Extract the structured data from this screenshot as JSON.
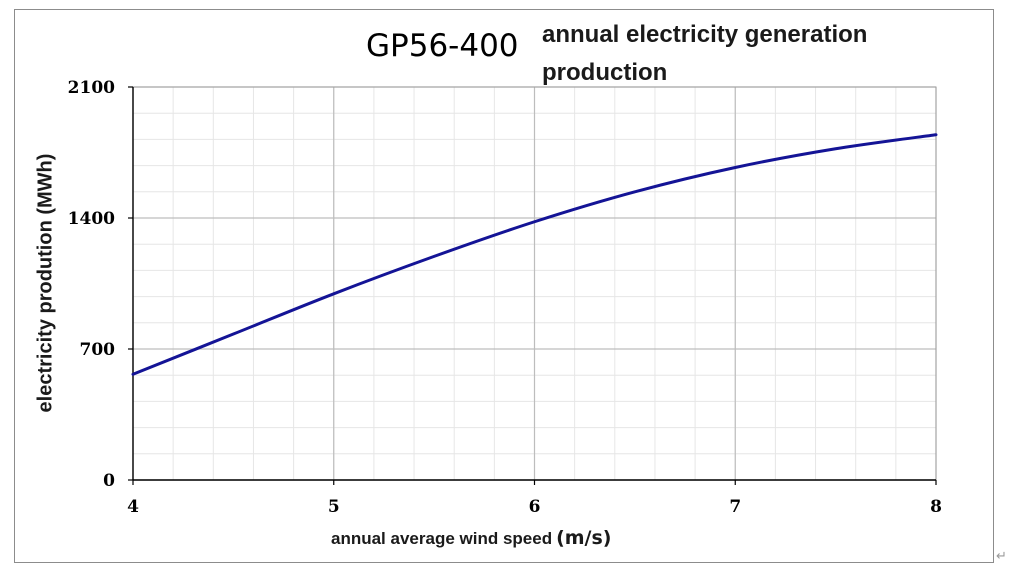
{
  "chart_data": {
    "type": "line",
    "title": "GP56-400",
    "subtitle": "annual electricity generation production",
    "xlabel": "annual average wind speed",
    "xlabel_unit": "(m/s)",
    "ylabel": "electricity prodution (MWh)",
    "xlim": [
      4,
      8
    ],
    "ylim": [
      0,
      2100
    ],
    "x_ticks": [
      4,
      5,
      6,
      7,
      8
    ],
    "y_ticks": [
      0,
      700,
      1400,
      2100
    ],
    "grid": true,
    "minor_grid": true,
    "series": [
      {
        "color": "#141496",
        "x": [
          4.0,
          4.5,
          5.0,
          5.5,
          6.0,
          6.5,
          7.0,
          7.5,
          8.0
        ],
        "y": [
          565,
          780,
          995,
          1195,
          1380,
          1540,
          1670,
          1770,
          1845
        ]
      }
    ]
  },
  "colors": {
    "line": "#141496",
    "major_grid": "#bdbdbd",
    "minor_grid": "#e6e6e6",
    "axis": "#000000",
    "frame": "#8c8c8c"
  },
  "return_mark": "↵"
}
